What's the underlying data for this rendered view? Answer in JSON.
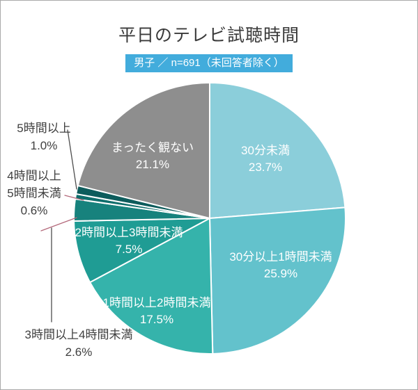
{
  "header": {
    "title": "平日のテレビ試聴時間",
    "badge": "男子 ／ n=691（未回答者除く）",
    "badge_bg": "#42acdc"
  },
  "chart_data": {
    "type": "pie",
    "title": "平日のテレビ試聴時間",
    "subtitle": "男子 ／ n=691（未回答者除く）",
    "n": 691,
    "unit": "%",
    "start_angle": "12-o-clock",
    "direction": "clockwise",
    "segments": [
      {
        "label": "30分未満",
        "value": 23.7,
        "display": "23.7%",
        "color": "#8bceda",
        "label_placement": "inside"
      },
      {
        "label": "30分以上1時間未満",
        "value": 25.9,
        "display": "25.9%",
        "color": "#63c2cc",
        "label_placement": "inside"
      },
      {
        "label": "1時間以上2時間未満",
        "value": 17.5,
        "display": "17.5%",
        "color": "#35b3ab",
        "label_placement": "inside"
      },
      {
        "label": "2時間以上3時間未満",
        "value": 7.5,
        "display": "7.5%",
        "color": "#1f9c94",
        "label_placement": "inside"
      },
      {
        "label": "3時間以上4時間未満",
        "value": 2.6,
        "display": "2.6%",
        "color": "#17827d",
        "label_placement": "outside"
      },
      {
        "label": "4時間以上5時間未満",
        "value": 0.6,
        "display": "0.6%",
        "color": "#0f6e6c",
        "label_placement": "outside"
      },
      {
        "label": "5時間以上",
        "value": 1.0,
        "display": "1.0%",
        "color": "#0d5c5c",
        "label_placement": "outside"
      },
      {
        "label": "まったく観ない",
        "value": 21.1,
        "display": "21.1%",
        "color": "#8e8e8e",
        "label_placement": "inside"
      }
    ]
  },
  "callouts": {
    "five_plus": {
      "line1": "5時間以上",
      "line2": "1.0%"
    },
    "four_to_five": {
      "line1": "4時間以上",
      "line2": "5時間未満",
      "line3": "0.6%"
    },
    "three_to_four": {
      "line1": "3時間以上4時間未満",
      "line2": "2.6%"
    }
  }
}
